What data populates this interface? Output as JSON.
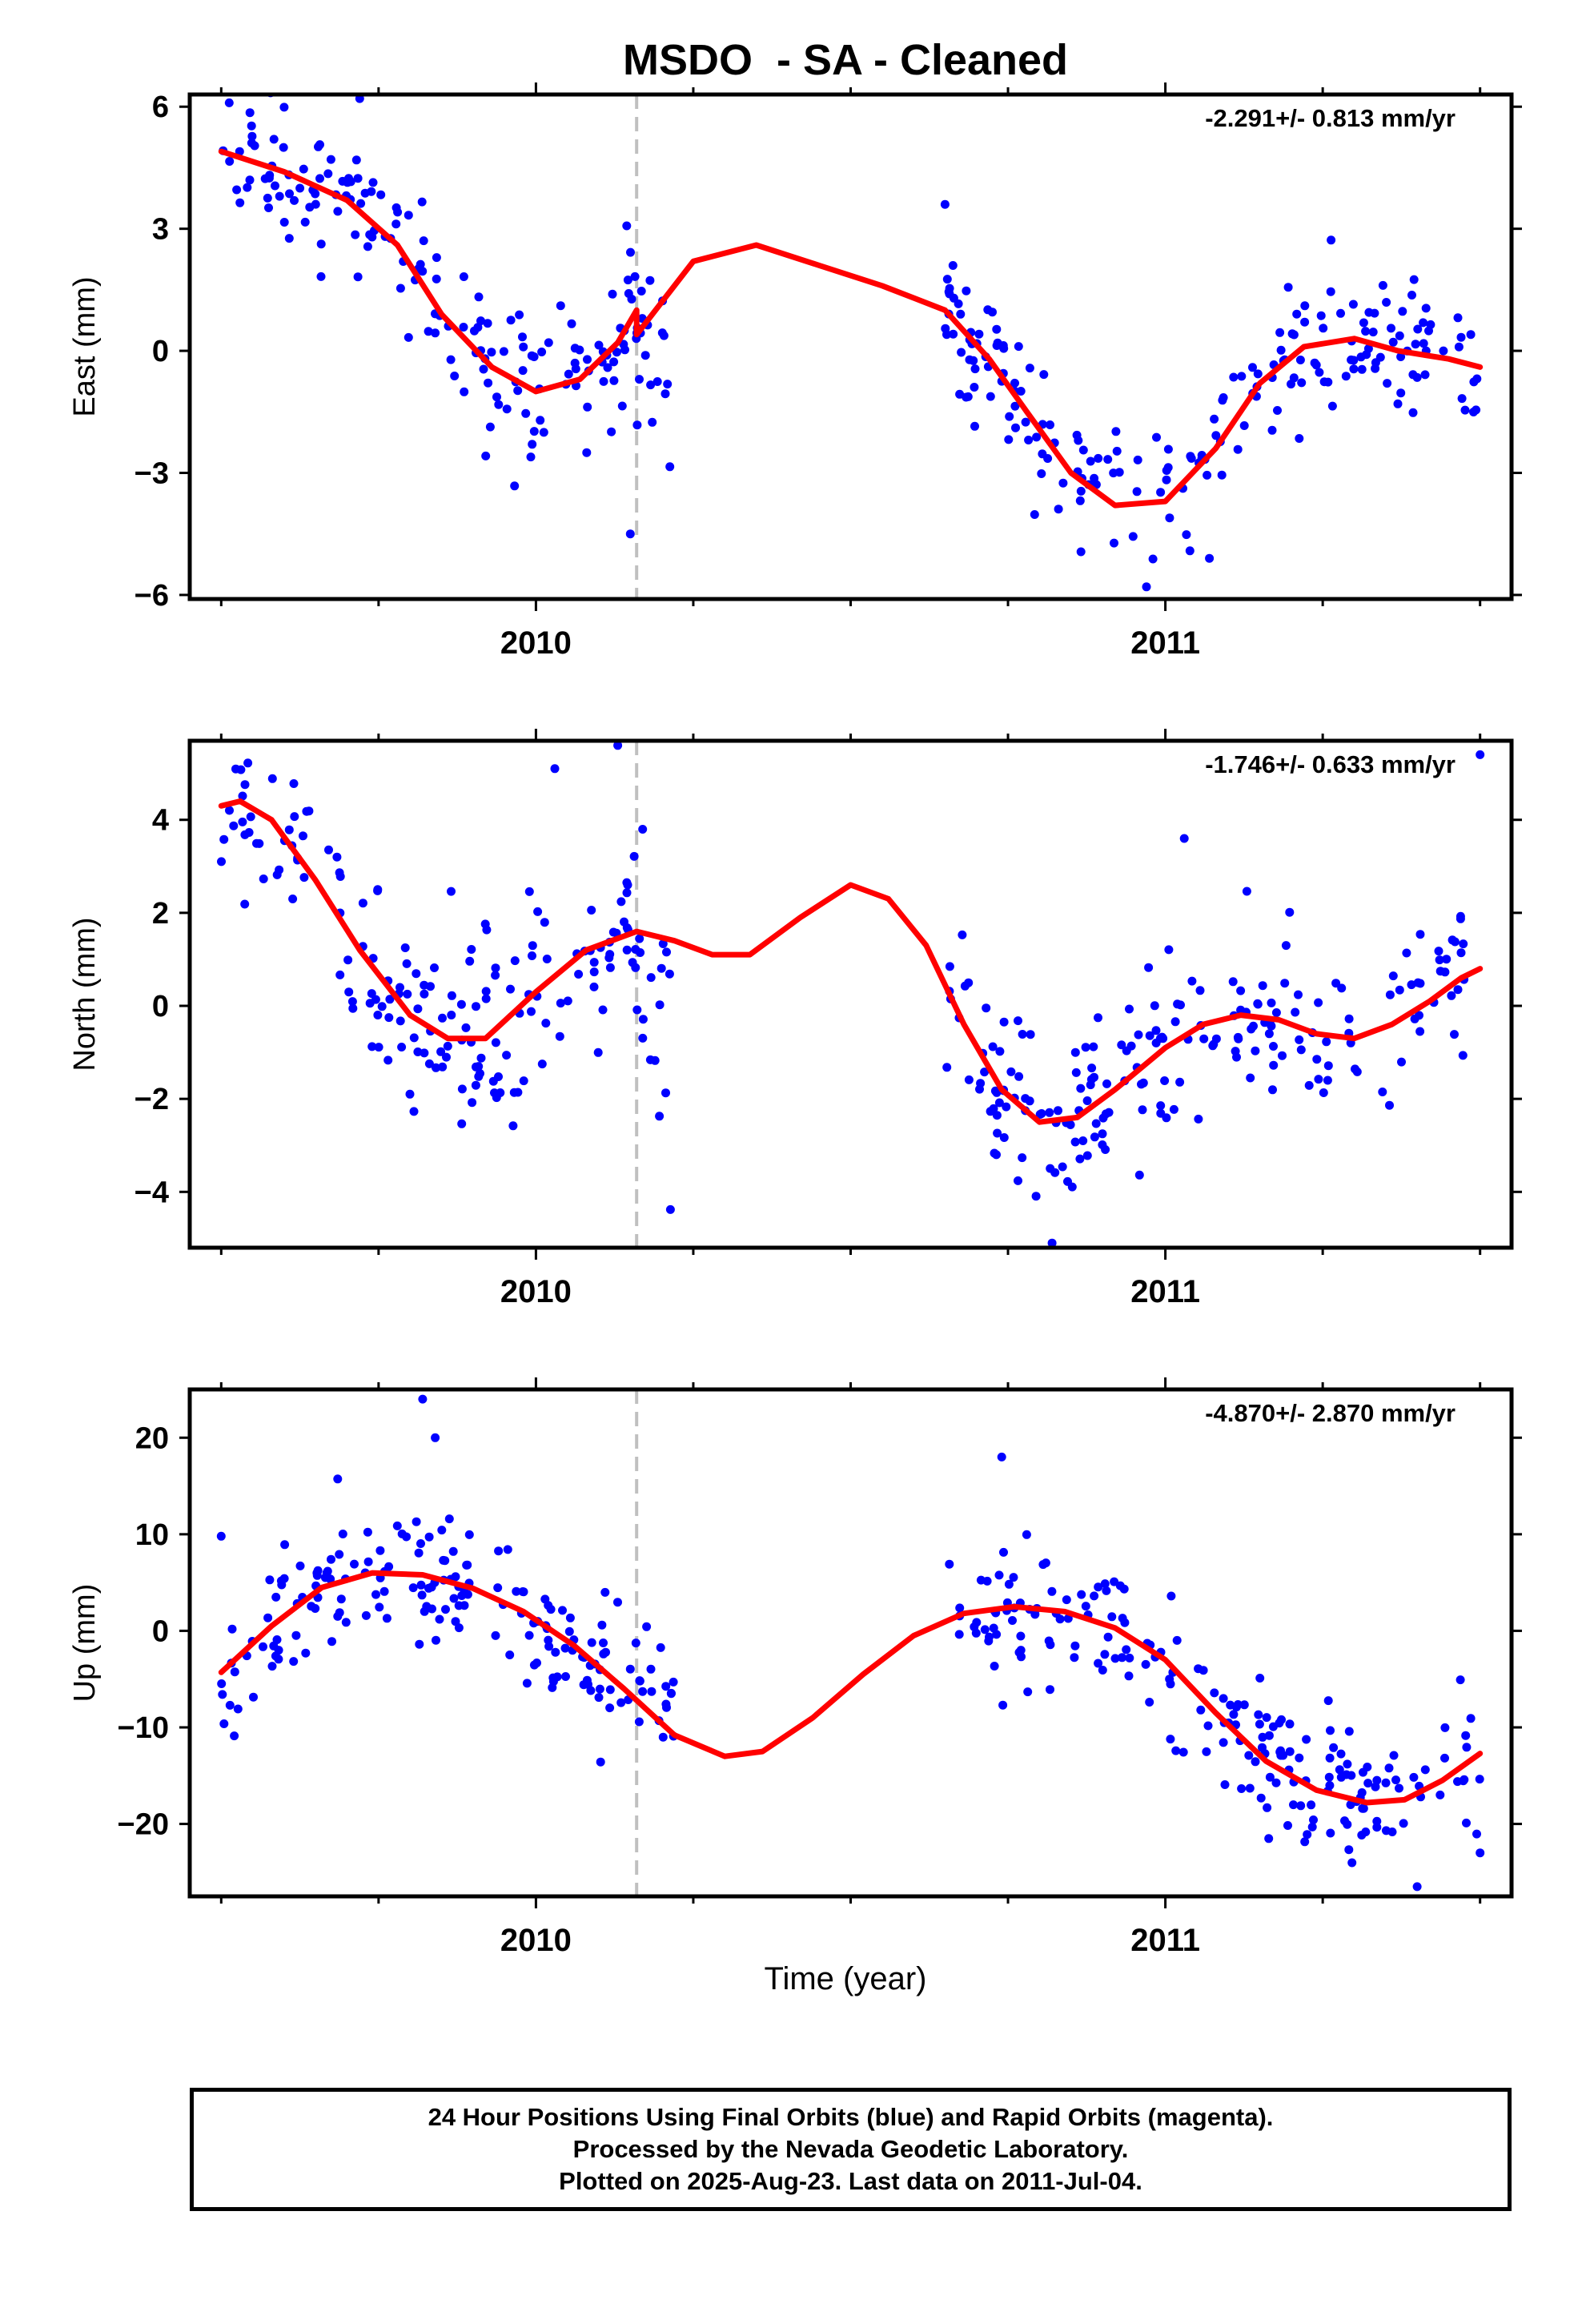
{
  "title": "MSDO  - SA - Cleaned",
  "xlabel": "Time (year)",
  "caption": {
    "line1": "24 Hour Positions Using Final Orbits (blue) and Rapid Orbits (magenta).",
    "line2": "Processed by the Nevada Geodetic Laboratory.",
    "line3": "Plotted on 2025-Aug-23. Last data on 2011-Jul-04."
  },
  "colors": {
    "final_orbits": "#0000ff",
    "model_fit": "#ff0000",
    "equipment_change_line": "#c0c0c0",
    "axes": "#000000"
  },
  "chart_data": [
    {
      "type": "scatter",
      "component": "East",
      "ylabel": "East (mm)",
      "rate_label": "-2.291+/- 0.813 mm/yr",
      "xlim": [
        2009.45,
        2011.55
      ],
      "ylim": [
        -6.1,
        6.3
      ],
      "y_ticks": [
        6,
        3,
        0,
        -3,
        -6
      ],
      "y_tick_labels": [
        "6",
        "3",
        "0",
        "−3",
        "−6"
      ],
      "x_ticks": [
        2010,
        2011
      ],
      "x_tick_labels": [
        "2010",
        "2011"
      ],
      "x_minor_ticks": [
        2009.5,
        2009.75,
        2010.25,
        2010.5,
        2010.75,
        2011.25,
        2011.5
      ],
      "grid": false,
      "break_lines": [
        2010.16
      ],
      "fit": {
        "x": [
          2009.5,
          2009.6,
          2009.7,
          2009.78,
          2009.85,
          2009.93,
          2010.0,
          2010.07,
          2010.13,
          2010.16,
          2010.16,
          2010.25,
          2010.35,
          2010.45,
          2010.55,
          2010.65,
          2010.72,
          2010.78,
          2010.85,
          2010.92,
          2011.0,
          2011.08,
          2011.15,
          2011.22,
          2011.3,
          2011.37,
          2011.45,
          2011.5
        ],
        "y": [
          4.9,
          4.4,
          3.7,
          2.6,
          0.9,
          -0.4,
          -1.0,
          -0.7,
          0.2,
          1.0,
          0.4,
          2.2,
          2.6,
          2.1,
          1.6,
          1.0,
          -0.2,
          -1.5,
          -3.0,
          -3.8,
          -3.7,
          -2.4,
          -0.8,
          0.1,
          0.3,
          0.0,
          -0.2,
          -0.4
        ]
      },
      "clusters": [
        {
          "x0": 2009.5,
          "x1": 2010.17,
          "n": 170,
          "noise": 0.9
        },
        {
          "x0": 2010.16,
          "x1": 2010.22,
          "n": 14,
          "noise": 1.4,
          "offset": -1.3
        },
        {
          "x0": 2010.65,
          "x1": 2011.5,
          "n": 200,
          "noise": 0.9
        }
      ],
      "outliers": [
        {
          "x": 2009.72,
          "y": 6.2
        },
        {
          "x": 2010.15,
          "y": -4.5
        },
        {
          "x": 2010.65,
          "y": 3.6
        },
        {
          "x": 2011.07,
          "y": -5.1
        },
        {
          "x": 2010.97,
          "y": -5.8
        }
      ]
    },
    {
      "type": "scatter",
      "component": "North",
      "ylabel": "North (mm)",
      "rate_label": "-1.746+/- 0.633 mm/yr",
      "xlim": [
        2009.45,
        2011.55
      ],
      "ylim": [
        -5.2,
        5.7
      ],
      "y_ticks": [
        4,
        2,
        0,
        -2,
        -4
      ],
      "y_tick_labels": [
        "4",
        "2",
        "0",
        "−2",
        "−4"
      ],
      "x_ticks": [
        2010,
        2011
      ],
      "x_tick_labels": [
        "2010",
        "2011"
      ],
      "x_minor_ticks": [
        2009.5,
        2009.75,
        2010.25,
        2010.5,
        2010.75,
        2011.25,
        2011.5
      ],
      "grid": false,
      "break_lines": [
        2010.16
      ],
      "fit": {
        "x": [
          2009.5,
          2009.53,
          2009.58,
          2009.65,
          2009.72,
          2009.8,
          2009.86,
          2009.92,
          2010.0,
          2010.08,
          2010.16,
          2010.22,
          2010.28,
          2010.34,
          2010.42,
          2010.5,
          2010.56,
          2010.62,
          2010.68,
          2010.74,
          2010.8,
          2010.86,
          2010.92,
          2011.0,
          2011.06,
          2011.12,
          2011.18,
          2011.24,
          2011.3,
          2011.36,
          2011.42,
          2011.47,
          2011.5
        ],
        "y": [
          4.3,
          4.4,
          4.0,
          2.7,
          1.2,
          -0.2,
          -0.7,
          -0.7,
          0.3,
          1.2,
          1.6,
          1.4,
          1.1,
          1.1,
          1.9,
          2.6,
          2.3,
          1.3,
          -0.4,
          -1.8,
          -2.5,
          -2.4,
          -1.8,
          -0.9,
          -0.4,
          -0.2,
          -0.3,
          -0.6,
          -0.7,
          -0.4,
          0.1,
          0.6,
          0.8
        ]
      },
      "clusters": [
        {
          "x0": 2009.5,
          "x1": 2010.17,
          "n": 170,
          "noise": 1.0
        },
        {
          "x0": 2010.16,
          "x1": 2010.22,
          "n": 14,
          "noise": 1.0,
          "offset": -2.2
        },
        {
          "x0": 2010.65,
          "x1": 2011.5,
          "n": 200,
          "noise": 1.0
        }
      ],
      "outliers": [
        {
          "x": 2010.13,
          "y": 5.6
        },
        {
          "x": 2010.03,
          "y": 5.1
        },
        {
          "x": 2011.5,
          "y": 5.4
        },
        {
          "x": 2010.82,
          "y": -5.1
        },
        {
          "x": 2011.03,
          "y": 3.6
        }
      ]
    },
    {
      "type": "scatter",
      "component": "Up",
      "ylabel": "Up (mm)",
      "rate_label": "-4.870+/- 2.870 mm/yr",
      "xlim": [
        2009.45,
        2011.55
      ],
      "ylim": [
        -27.5,
        25.0
      ],
      "y_ticks": [
        20,
        10,
        0,
        -10,
        -20
      ],
      "y_tick_labels": [
        "20",
        "10",
        "0",
        "−10",
        "−20"
      ],
      "x_ticks": [
        2010,
        2011
      ],
      "x_tick_labels": [
        "2010",
        "2011"
      ],
      "x_minor_ticks": [
        2009.5,
        2009.75,
        2010.25,
        2010.5,
        2010.75,
        2011.25,
        2011.5
      ],
      "grid": false,
      "break_lines": [
        2010.16
      ],
      "fit": {
        "x": [
          2009.5,
          2009.58,
          2009.66,
          2009.74,
          2009.82,
          2009.9,
          2009.98,
          2010.06,
          2010.14,
          2010.22,
          2010.3,
          2010.36,
          2010.44,
          2010.52,
          2010.6,
          2010.68,
          2010.76,
          2010.84,
          2010.92,
          2011.0,
          2011.08,
          2011.16,
          2011.24,
          2011.32,
          2011.38,
          2011.44,
          2011.5
        ],
        "y": [
          -4.3,
          0.5,
          4.5,
          6.0,
          5.8,
          4.4,
          2.0,
          -1.5,
          -6.0,
          -10.8,
          -13.0,
          -12.5,
          -9.0,
          -4.5,
          -0.5,
          1.8,
          2.5,
          2.0,
          0.3,
          -3.0,
          -8.5,
          -13.5,
          -16.5,
          -17.8,
          -17.5,
          -15.5,
          -12.7
        ]
      },
      "clusters": [
        {
          "x0": 2009.5,
          "x1": 2010.17,
          "n": 170,
          "noise": 3.6
        },
        {
          "x0": 2010.16,
          "x1": 2010.22,
          "n": 14,
          "noise": 3.5,
          "offset": 2.0
        },
        {
          "x0": 2010.65,
          "x1": 2011.5,
          "n": 200,
          "noise": 3.4
        }
      ],
      "outliers": [
        {
          "x": 2009.82,
          "y": 24.0
        },
        {
          "x": 2009.84,
          "y": 20.0
        },
        {
          "x": 2010.74,
          "y": 18.0
        },
        {
          "x": 2009.5,
          "y": 9.8
        },
        {
          "x": 2011.4,
          "y": -26.5
        },
        {
          "x": 2011.5,
          "y": -23.0
        }
      ]
    }
  ]
}
